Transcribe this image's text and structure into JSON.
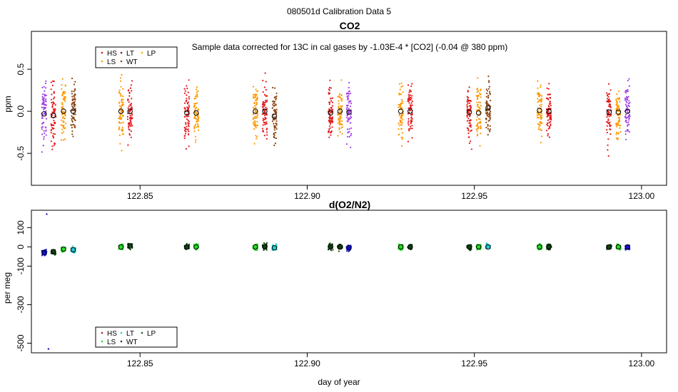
{
  "suptitle": "080501d   Calibration Data 5",
  "xlabel": "day of year",
  "colors": {
    "HS": "#e41a1c",
    "LS": "#ff9900",
    "LT": "#8b1a1a",
    "WT": "#8b4513",
    "LP": "#ffb000",
    "violet": "#a040e8",
    "o2_HS": "#b22222",
    "o2_LS": "#22dd22",
    "o2_LT": "#22cccc",
    "o2_WT": "#104010",
    "o2_LP": "#1e5a1e",
    "o2_blue": "#1010cc"
  },
  "chart_data": [
    {
      "type": "scatter",
      "title": "CO2",
      "subtitle": "Sample data corrected for 13C in cal gases by -1.03E-4 * [CO2] (-0.04 @ 380 ppm)",
      "xlabel": "",
      "ylabel": "ppm",
      "xlim": [
        122.8175,
        123.0075
      ],
      "ylim": [
        -0.88,
        0.95
      ],
      "xticks": [
        122.85,
        122.9,
        122.95,
        123.0
      ],
      "xtick_labels": [
        "122.85",
        "122.90",
        "122.95",
        "123.00"
      ],
      "yticks": [
        0.5,
        0.0,
        -0.5
      ],
      "ytick_labels": [
        "0.5",
        "0.0",
        "-0.5"
      ],
      "legend": {
        "placement": "top-left",
        "entries": [
          "HS",
          "LS",
          "LT",
          "WT",
          "LP"
        ]
      },
      "groups": [
        {
          "x": 122.8213,
          "mean": -0.03,
          "color": "violet"
        },
        {
          "x": 122.8241,
          "mean": -0.05,
          "color": "HS"
        },
        {
          "x": 122.8271,
          "mean": 0.0,
          "color": "LS"
        },
        {
          "x": 122.83,
          "mean": 0.0,
          "color": "WT"
        },
        {
          "x": 122.8443,
          "mean": 0.0,
          "color": "LS"
        },
        {
          "x": 122.847,
          "mean": 0.0,
          "color": "HS"
        },
        {
          "x": 122.864,
          "mean": -0.02,
          "color": "HS"
        },
        {
          "x": 122.8668,
          "mean": -0.02,
          "color": "LS"
        },
        {
          "x": 122.8845,
          "mean": 0.0,
          "color": "LS"
        },
        {
          "x": 122.8873,
          "mean": 0.0,
          "color": "HS"
        },
        {
          "x": 122.8902,
          "mean": -0.06,
          "color": "WT"
        },
        {
          "x": 122.907,
          "mean": -0.02,
          "color": "HS"
        },
        {
          "x": 122.9098,
          "mean": 0.0,
          "color": "LS"
        },
        {
          "x": 122.9125,
          "mean": -0.01,
          "color": "violet"
        },
        {
          "x": 122.928,
          "mean": 0.0,
          "color": "LS"
        },
        {
          "x": 122.9308,
          "mean": 0.0,
          "color": "HS"
        },
        {
          "x": 122.9485,
          "mean": -0.01,
          "color": "HS"
        },
        {
          "x": 122.9513,
          "mean": -0.02,
          "color": "LS"
        },
        {
          "x": 122.9541,
          "mean": 0.04,
          "color": "WT"
        },
        {
          "x": 122.9695,
          "mean": 0.01,
          "color": "LS"
        },
        {
          "x": 122.9723,
          "mean": 0.0,
          "color": "HS"
        },
        {
          "x": 122.9903,
          "mean": -0.01,
          "color": "HS"
        },
        {
          "x": 122.9931,
          "mean": -0.01,
          "color": "LS"
        },
        {
          "x": 122.9958,
          "mean": 0.0,
          "color": "violet"
        }
      ]
    },
    {
      "type": "scatter",
      "title": "d(O2/N2)",
      "xlabel": "day of year",
      "ylabel": "per meg",
      "xlim": [
        122.8175,
        123.0075
      ],
      "ylim": [
        -550,
        190
      ],
      "xticks": [
        122.85,
        122.9,
        122.95,
        123.0
      ],
      "xtick_labels": [
        "122.85",
        "122.90",
        "122.95",
        "123.00"
      ],
      "yticks": [
        100,
        0,
        -100,
        -300,
        -500
      ],
      "ytick_labels": [
        "100",
        "0",
        "-100",
        "-300",
        "-500"
      ],
      "legend": {
        "placement": "bottom-left",
        "entries": [
          "HS",
          "LS",
          "LT",
          "WT",
          "LP"
        ]
      },
      "groups": [
        {
          "x": 122.8213,
          "mean": -30,
          "color": "o2_blue"
        },
        {
          "x": 122.8241,
          "mean": -25,
          "color": "o2_WT"
        },
        {
          "x": 122.8271,
          "mean": -12,
          "color": "o2_LS"
        },
        {
          "x": 122.83,
          "mean": -15,
          "color": "o2_LT"
        },
        {
          "x": 122.8443,
          "mean": 0,
          "color": "o2_LS"
        },
        {
          "x": 122.847,
          "mean": 5,
          "color": "o2_WT"
        },
        {
          "x": 122.864,
          "mean": 0,
          "color": "o2_WT"
        },
        {
          "x": 122.8668,
          "mean": 0,
          "color": "o2_LS"
        },
        {
          "x": 122.8845,
          "mean": 0,
          "color": "o2_LS"
        },
        {
          "x": 122.8873,
          "mean": 0,
          "color": "o2_WT"
        },
        {
          "x": 122.8902,
          "mean": -5,
          "color": "o2_LT"
        },
        {
          "x": 122.907,
          "mean": 0,
          "color": "o2_WT"
        },
        {
          "x": 122.9098,
          "mean": 0,
          "color": "o2_WT"
        },
        {
          "x": 122.9125,
          "mean": -5,
          "color": "o2_blue"
        },
        {
          "x": 122.928,
          "mean": 0,
          "color": "o2_LS"
        },
        {
          "x": 122.9308,
          "mean": 0,
          "color": "o2_WT"
        },
        {
          "x": 122.9485,
          "mean": 0,
          "color": "o2_WT"
        },
        {
          "x": 122.9513,
          "mean": 0,
          "color": "o2_LS"
        },
        {
          "x": 122.9541,
          "mean": 0,
          "color": "o2_LT"
        },
        {
          "x": 122.9695,
          "mean": 0,
          "color": "o2_LS"
        },
        {
          "x": 122.9723,
          "mean": 0,
          "color": "o2_WT"
        },
        {
          "x": 122.9903,
          "mean": 0,
          "color": "o2_WT"
        },
        {
          "x": 122.9931,
          "mean": 0,
          "color": "o2_LS"
        },
        {
          "x": 122.9958,
          "mean": 0,
          "color": "o2_blue"
        }
      ],
      "outliers": [
        {
          "x": 122.8221,
          "y": 170,
          "color": "o2_blue"
        },
        {
          "x": 122.8226,
          "y": -530,
          "color": "o2_blue"
        }
      ]
    }
  ]
}
